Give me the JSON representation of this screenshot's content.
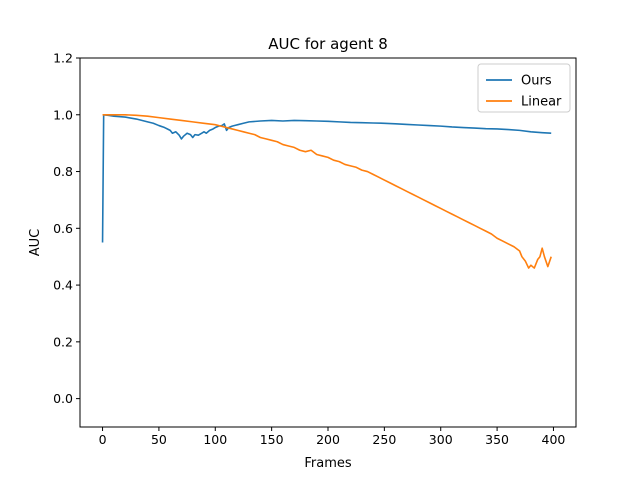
{
  "chart_data": {
    "type": "line",
    "title": "AUC for agent 8",
    "xlabel": "Frames",
    "ylabel": "AUC",
    "xlim": [
      -20,
      420
    ],
    "ylim": [
      -0.1,
      1.2
    ],
    "xticks": [
      0,
      50,
      100,
      150,
      200,
      250,
      300,
      350,
      400
    ],
    "yticks": [
      0.0,
      0.2,
      0.4,
      0.6,
      0.8,
      1.0,
      1.2
    ],
    "xtick_labels": [
      "0",
      "50",
      "100",
      "150",
      "200",
      "250",
      "300",
      "350",
      "400"
    ],
    "ytick_labels": [
      "0.0",
      "0.2",
      "0.4",
      "0.6",
      "0.8",
      "1.0",
      "1.2"
    ],
    "grid": false,
    "legend": {
      "position": "top-right"
    },
    "series": [
      {
        "name": "Ours",
        "color": "#1f77b4",
        "x": [
          0,
          1,
          5,
          10,
          20,
          30,
          40,
          45,
          50,
          55,
          60,
          62,
          65,
          68,
          70,
          72,
          75,
          78,
          80,
          82,
          85,
          88,
          90,
          92,
          95,
          98,
          100,
          103,
          106,
          108,
          110,
          112,
          115,
          118,
          120,
          125,
          130,
          140,
          150,
          160,
          170,
          180,
          190,
          200,
          210,
          220,
          230,
          240,
          250,
          260,
          270,
          280,
          290,
          300,
          310,
          320,
          330,
          340,
          350,
          360,
          370,
          380,
          390,
          398
        ],
        "y": [
          0.55,
          1.0,
          0.998,
          0.995,
          0.992,
          0.985,
          0.975,
          0.97,
          0.962,
          0.955,
          0.945,
          0.935,
          0.94,
          0.928,
          0.915,
          0.925,
          0.935,
          0.93,
          0.92,
          0.93,
          0.928,
          0.935,
          0.94,
          0.935,
          0.945,
          0.95,
          0.955,
          0.96,
          0.962,
          0.968,
          0.945,
          0.955,
          0.96,
          0.963,
          0.965,
          0.97,
          0.975,
          0.978,
          0.98,
          0.978,
          0.98,
          0.979,
          0.978,
          0.977,
          0.975,
          0.973,
          0.972,
          0.971,
          0.97,
          0.968,
          0.966,
          0.964,
          0.962,
          0.96,
          0.957,
          0.955,
          0.953,
          0.951,
          0.95,
          0.948,
          0.945,
          0.94,
          0.937,
          0.935
        ]
      },
      {
        "name": "Linear",
        "color": "#ff7f0e",
        "x": [
          0,
          5,
          10,
          20,
          30,
          40,
          50,
          60,
          70,
          80,
          90,
          100,
          105,
          110,
          115,
          120,
          125,
          130,
          135,
          140,
          145,
          150,
          155,
          160,
          165,
          170,
          175,
          180,
          185,
          190,
          195,
          200,
          205,
          210,
          215,
          220,
          225,
          230,
          235,
          240,
          245,
          250,
          255,
          260,
          265,
          270,
          275,
          280,
          285,
          290,
          295,
          300,
          305,
          310,
          315,
          320,
          325,
          330,
          335,
          340,
          345,
          350,
          355,
          360,
          365,
          370,
          372,
          375,
          378,
          380,
          383,
          386,
          388,
          390,
          392,
          395,
          398
        ],
        "y": [
          1.0,
          1.0,
          1.0,
          1.0,
          0.998,
          0.995,
          0.99,
          0.985,
          0.98,
          0.975,
          0.97,
          0.965,
          0.96,
          0.955,
          0.95,
          0.945,
          0.94,
          0.935,
          0.93,
          0.92,
          0.915,
          0.91,
          0.905,
          0.895,
          0.89,
          0.885,
          0.875,
          0.87,
          0.875,
          0.86,
          0.855,
          0.85,
          0.84,
          0.835,
          0.825,
          0.82,
          0.815,
          0.805,
          0.8,
          0.79,
          0.78,
          0.77,
          0.76,
          0.75,
          0.74,
          0.73,
          0.72,
          0.71,
          0.7,
          0.69,
          0.68,
          0.67,
          0.66,
          0.65,
          0.64,
          0.63,
          0.62,
          0.61,
          0.6,
          0.59,
          0.58,
          0.565,
          0.555,
          0.545,
          0.535,
          0.52,
          0.5,
          0.485,
          0.46,
          0.47,
          0.46,
          0.49,
          0.5,
          0.53,
          0.5,
          0.465,
          0.5
        ]
      }
    ]
  }
}
